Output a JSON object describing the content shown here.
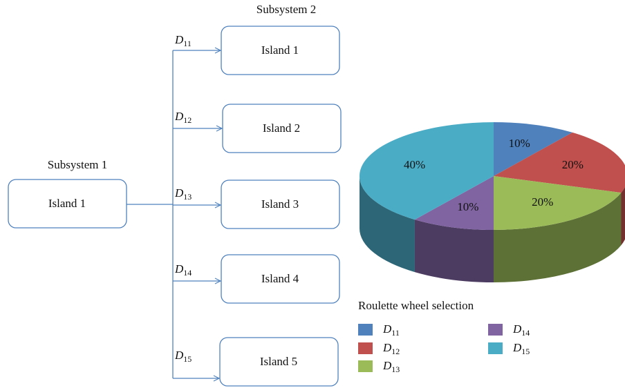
{
  "diagram": {
    "source": {
      "title": "Subsystem 1",
      "label": "Island 1"
    },
    "targets_title": "Subsystem 2",
    "targets": [
      "Island 1",
      "Island 2",
      "Island 3",
      "Island 4",
      "Island 5"
    ],
    "edges": [
      {
        "symbol": "D",
        "index": "11"
      },
      {
        "symbol": "D",
        "index": "12"
      },
      {
        "symbol": "D",
        "index": "13"
      },
      {
        "symbol": "D",
        "index": "14"
      },
      {
        "symbol": "D",
        "index": "15"
      }
    ]
  },
  "chart_data": {
    "type": "pie",
    "title": "Roulette wheel selection",
    "labels": [
      {
        "symbol": "D",
        "index": "11"
      },
      {
        "symbol": "D",
        "index": "12"
      },
      {
        "symbol": "D",
        "index": "13"
      },
      {
        "symbol": "D",
        "index": "14"
      },
      {
        "symbol": "D",
        "index": "15"
      }
    ],
    "values": [
      10,
      20,
      20,
      10,
      40
    ],
    "value_labels": [
      "10%",
      "20%",
      "20%",
      "10%",
      "40%"
    ],
    "colors": [
      "#4f81bd",
      "#c0504d",
      "#9bbb59",
      "#8064a2",
      "#4bacc6"
    ]
  }
}
